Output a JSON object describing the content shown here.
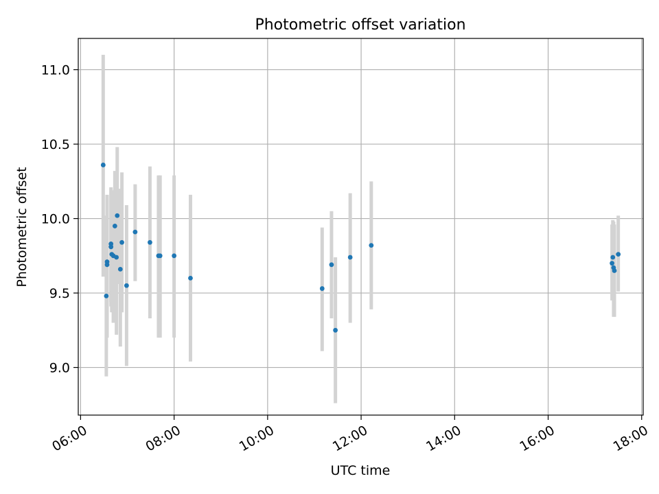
{
  "chart_data": {
    "type": "scatter",
    "title": "Photometric offset variation",
    "xlabel": "UTC time",
    "ylabel": "Photometric offset",
    "xlim": [
      "05:57",
      "18:02"
    ],
    "ylim": [
      8.68,
      11.21
    ],
    "xticks": [
      "06:00",
      "08:00",
      "10:00",
      "12:00",
      "14:00",
      "16:00",
      "18:00"
    ],
    "yticks": [
      9.0,
      9.5,
      10.0,
      10.5,
      11.0
    ],
    "grid": true,
    "series": [
      {
        "marker_color": "#1f77b4",
        "errorbar_color": "#d3d3d3",
        "points": [
          {
            "x": "06:29",
            "y": 10.36,
            "err_low": 9.61,
            "err_high": 11.1
          },
          {
            "x": "06:33",
            "y": 9.48,
            "err_low": 8.94,
            "err_high": 10.02
          },
          {
            "x": "06:34",
            "y": 9.69,
            "err_low": 9.2,
            "err_high": 10.16
          },
          {
            "x": "06:34",
            "y": 9.71,
            "err_low": 9.25,
            "err_high": 10.14
          },
          {
            "x": "06:39",
            "y": 9.81,
            "err_low": 9.41,
            "err_high": 10.21
          },
          {
            "x": "06:39",
            "y": 9.83,
            "err_low": 9.44,
            "err_high": 10.2
          },
          {
            "x": "06:40",
            "y": 9.76,
            "err_low": 9.37,
            "err_high": 10.15
          },
          {
            "x": "06:42",
            "y": 9.75,
            "err_low": 9.3,
            "err_high": 10.19
          },
          {
            "x": "06:44",
            "y": 9.95,
            "err_low": 9.58,
            "err_high": 10.32
          },
          {
            "x": "06:46",
            "y": 9.74,
            "err_low": 9.22,
            "err_high": 10.26
          },
          {
            "x": "06:47",
            "y": 10.02,
            "err_low": 9.56,
            "err_high": 10.48
          },
          {
            "x": "06:51",
            "y": 9.66,
            "err_low": 9.14,
            "err_high": 10.2
          },
          {
            "x": "06:53",
            "y": 9.84,
            "err_low": 9.37,
            "err_high": 10.31
          },
          {
            "x": "06:59",
            "y": 9.55,
            "err_low": 9.01,
            "err_high": 10.09
          },
          {
            "x": "07:10",
            "y": 9.91,
            "err_low": 9.58,
            "err_high": 10.23
          },
          {
            "x": "07:29",
            "y": 9.84,
            "err_low": 9.33,
            "err_high": 10.35
          },
          {
            "x": "07:40",
            "y": 9.75,
            "err_low": 9.2,
            "err_high": 10.29
          },
          {
            "x": "07:42",
            "y": 9.75,
            "err_low": 9.2,
            "err_high": 10.29
          },
          {
            "x": "08:00",
            "y": 9.75,
            "err_low": 9.2,
            "err_high": 10.29
          },
          {
            "x": "08:21",
            "y": 9.6,
            "err_low": 9.04,
            "err_high": 10.16
          },
          {
            "x": "11:10",
            "y": 9.53,
            "err_low": 9.11,
            "err_high": 9.94
          },
          {
            "x": "11:22",
            "y": 9.69,
            "err_low": 9.33,
            "err_high": 10.05
          },
          {
            "x": "11:27",
            "y": 9.25,
            "err_low": 8.76,
            "err_high": 9.74
          },
          {
            "x": "11:46",
            "y": 9.74,
            "err_low": 9.3,
            "err_high": 10.17
          },
          {
            "x": "12:13",
            "y": 9.82,
            "err_low": 9.39,
            "err_high": 10.25
          },
          {
            "x": "17:22",
            "y": 9.7,
            "err_low": 9.45,
            "err_high": 9.96
          },
          {
            "x": "17:23",
            "y": 9.74,
            "err_low": 9.46,
            "err_high": 9.99
          },
          {
            "x": "17:24",
            "y": 9.67,
            "err_low": 9.34,
            "err_high": 9.98
          },
          {
            "x": "17:25",
            "y": 9.65,
            "err_low": 9.34,
            "err_high": 9.96
          },
          {
            "x": "17:30",
            "y": 9.76,
            "err_low": 9.51,
            "err_high": 10.02
          }
        ]
      }
    ]
  }
}
